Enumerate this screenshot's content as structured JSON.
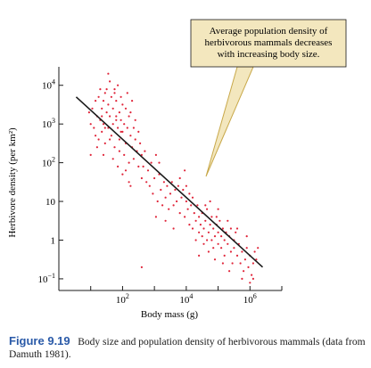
{
  "chart_data": {
    "type": "scatter",
    "title": "",
    "xlabel": "Body mass (g)",
    "ylabel": "Herbivore density (per km²)",
    "x_scale": "log10",
    "y_scale": "log10",
    "xlim": [
      1,
      10000000
    ],
    "ylim": [
      0.05,
      30000
    ],
    "x_ticks": [
      {
        "value": 100,
        "label_base": "10",
        "label_exp": "2"
      },
      {
        "value": 10000,
        "label_base": "10",
        "label_exp": "4"
      },
      {
        "value": 1000000,
        "label_base": "10",
        "label_exp": "6"
      }
    ],
    "y_ticks": [
      {
        "value": 10000,
        "label_base": "10",
        "label_exp": "4"
      },
      {
        "value": 1000,
        "label_base": "10",
        "label_exp": "3"
      },
      {
        "value": 100,
        "label_base": "10",
        "label_exp": "2"
      },
      {
        "value": 10,
        "label_base": "10",
        "label_exp": ""
      },
      {
        "value": 1,
        "label_base": "1",
        "label_exp": ""
      },
      {
        "value": 0.1,
        "label_base": "10",
        "label_exp": "−1"
      }
    ],
    "trend_line": {
      "x": [
        3.5,
        2500000
      ],
      "y": [
        5000,
        0.2
      ]
    },
    "point_color": "#e0253a",
    "axis_color": "#1a1a1a",
    "annotation_text": [
      "Average population density of",
      "herbivorous mammals decreases",
      "with increasing body size."
    ],
    "annotation_box_color": "#f3e7be",
    "annotation_pointer_color": "#c8a84a",
    "points": [
      [
        0.95,
        3.3
      ],
      [
        1.0,
        3.0
      ],
      [
        1.05,
        3.4
      ],
      [
        1.1,
        2.9
      ],
      [
        1.15,
        3.6
      ],
      [
        1.2,
        3.2
      ],
      [
        1.25,
        3.7
      ],
      [
        1.25,
        2.6
      ],
      [
        1.3,
        3.1
      ],
      [
        1.3,
        3.9
      ],
      [
        1.35,
        3.4
      ],
      [
        1.35,
        2.8
      ],
      [
        1.4,
        3.6
      ],
      [
        1.4,
        3.0
      ],
      [
        1.45,
        3.8
      ],
      [
        1.45,
        2.5
      ],
      [
        1.5,
        3.3
      ],
      [
        1.5,
        3.9
      ],
      [
        1.55,
        2.9
      ],
      [
        1.55,
        3.5
      ],
      [
        1.6,
        4.1
      ],
      [
        1.6,
        3.2
      ],
      [
        1.65,
        3.7
      ],
      [
        1.65,
        2.7
      ],
      [
        1.7,
        3.4
      ],
      [
        1.7,
        3.0
      ],
      [
        1.75,
        3.8
      ],
      [
        1.75,
        2.4
      ],
      [
        1.8,
        3.2
      ],
      [
        1.8,
        3.6
      ],
      [
        1.85,
        2.9
      ],
      [
        1.85,
        4.0
      ],
      [
        1.9,
        3.3
      ],
      [
        1.9,
        2.6
      ],
      [
        1.95,
        3.7
      ],
      [
        1.95,
        3.1
      ],
      [
        2.0,
        2.8
      ],
      [
        2.0,
        3.5
      ],
      [
        2.05,
        2.2
      ],
      [
        2.05,
        3.0
      ],
      [
        2.1,
        3.4
      ],
      [
        2.1,
        2.5
      ],
      [
        2.15,
        3.8
      ],
      [
        2.15,
        2.9
      ],
      [
        2.2,
        3.2
      ],
      [
        2.2,
        2.0
      ],
      [
        2.25,
        2.7
      ],
      [
        2.25,
        3.3
      ],
      [
        2.3,
        2.4
      ],
      [
        2.3,
        3.6
      ],
      [
        2.35,
        2.9
      ],
      [
        2.35,
        2.1
      ],
      [
        2.4,
        3.1
      ],
      [
        2.4,
        2.6
      ],
      [
        2.45,
        2.3
      ],
      [
        2.5,
        2.8
      ],
      [
        2.5,
        1.9
      ],
      [
        2.55,
        2.5
      ],
      [
        2.6,
        2.2
      ],
      [
        2.6,
        1.6
      ],
      [
        1.2,
        2.4
      ],
      [
        1.0,
        2.2
      ],
      [
        1.4,
        2.2
      ],
      [
        1.7,
        2.1
      ],
      [
        1.85,
        1.9
      ],
      [
        2.0,
        1.7
      ],
      [
        2.1,
        1.8
      ],
      [
        2.2,
        1.5
      ],
      [
        1.6,
        2.6
      ],
      [
        1.9,
        2.3
      ],
      [
        1.15,
        2.7
      ],
      [
        1.35,
        3.2
      ],
      [
        1.55,
        4.3
      ],
      [
        1.75,
        3.9
      ],
      [
        1.95,
        2.8
      ],
      [
        1.8,
        3.1
      ],
      [
        2.25,
        1.4
      ],
      [
        1.45,
        2.9
      ],
      [
        2.7,
        2.3
      ],
      [
        2.8,
        1.8
      ],
      [
        2.85,
        1.4
      ],
      [
        2.9,
        2.0
      ],
      [
        2.95,
        1.2
      ],
      [
        3.0,
        1.6
      ],
      [
        3.05,
        2.2
      ],
      [
        3.1,
        1.0
      ],
      [
        3.15,
        1.7
      ],
      [
        3.2,
        1.3
      ],
      [
        3.25,
        0.9
      ],
      [
        3.3,
        1.5
      ],
      [
        3.35,
        1.1
      ],
      [
        3.4,
        1.4
      ],
      [
        3.45,
        0.8
      ],
      [
        3.5,
        1.2
      ],
      [
        3.55,
        1.5
      ],
      [
        3.6,
        0.9
      ],
      [
        3.65,
        1.3
      ],
      [
        3.7,
        1.0
      ],
      [
        3.75,
        1.4
      ],
      [
        3.8,
        0.7
      ],
      [
        3.85,
        1.1
      ],
      [
        3.9,
        1.3
      ],
      [
        3.95,
        0.6
      ],
      [
        4.0,
        1.0
      ],
      [
        4.0,
        1.4
      ],
      [
        4.05,
        0.8
      ],
      [
        4.1,
        1.2
      ],
      [
        4.1,
        0.4
      ],
      [
        4.15,
        0.9
      ],
      [
        4.2,
        1.1
      ],
      [
        2.75,
        1.5
      ],
      [
        3.05,
        0.6
      ],
      [
        3.35,
        0.5
      ],
      [
        3.6,
        0.3
      ],
      [
        3.8,
        1.6
      ],
      [
        3.95,
        1.8
      ],
      [
        3.15,
        2.0
      ],
      [
        2.65,
        1.9
      ],
      [
        4.2,
        0.3
      ],
      [
        4.25,
        0.7
      ],
      [
        4.3,
        0.0
      ],
      [
        4.3,
        0.5
      ],
      [
        4.35,
        0.9
      ],
      [
        4.4,
        0.2
      ],
      [
        4.4,
        0.6
      ],
      [
        4.45,
        0.4
      ],
      [
        4.5,
        0.1
      ],
      [
        4.5,
        0.7
      ],
      [
        4.55,
        -0.1
      ],
      [
        4.55,
        0.3
      ],
      [
        4.6,
        0.5
      ],
      [
        4.65,
        0.0
      ],
      [
        4.65,
        0.8
      ],
      [
        4.7,
        0.2
      ],
      [
        4.7,
        -0.3
      ],
      [
        4.75,
        0.4
      ],
      [
        4.8,
        0.0
      ],
      [
        4.8,
        0.6
      ],
      [
        4.85,
        -0.2
      ],
      [
        4.85,
        0.3
      ],
      [
        4.9,
        0.1
      ],
      [
        4.9,
        -0.5
      ],
      [
        4.95,
        0.4
      ],
      [
        5.0,
        -0.1
      ],
      [
        5.0,
        0.2
      ],
      [
        5.05,
        0.5
      ],
      [
        5.1,
        -0.2
      ],
      [
        5.1,
        0.1
      ],
      [
        5.15,
        0.3
      ],
      [
        5.2,
        -0.4
      ],
      [
        5.2,
        0.0
      ],
      [
        5.25,
        0.2
      ],
      [
        5.3,
        -0.1
      ],
      [
        5.35,
        0.1
      ],
      [
        5.4,
        -0.3
      ],
      [
        5.4,
        0.3
      ],
      [
        5.45,
        -0.6
      ],
      [
        5.5,
        0.0
      ],
      [
        5.5,
        -0.2
      ],
      [
        5.55,
        0.2
      ],
      [
        5.6,
        -0.4
      ],
      [
        5.65,
        -0.1
      ],
      [
        5.7,
        -0.6
      ],
      [
        5.75,
        -0.3
      ],
      [
        5.8,
        -0.8
      ],
      [
        5.85,
        -0.5
      ],
      [
        5.9,
        -0.2
      ],
      [
        5.95,
        -0.7
      ],
      [
        6.0,
        -0.4
      ],
      [
        6.05,
        -0.9
      ],
      [
        6.1,
        -0.6
      ],
      [
        6.15,
        -0.3
      ],
      [
        6.2,
        -0.5
      ],
      [
        6.25,
        -0.2
      ],
      [
        6.0,
        -1.1
      ],
      [
        5.75,
        -1.0
      ],
      [
        5.3,
        0.5
      ],
      [
        4.6,
        0.9
      ],
      [
        4.95,
        0.6
      ],
      [
        5.6,
        0.3
      ],
      [
        4.4,
        -0.4
      ],
      [
        5.15,
        -0.6
      ],
      [
        2.6,
        -0.7
      ],
      [
        6.1,
        -1.0
      ],
      [
        5.9,
        0.1
      ],
      [
        5.0,
        0.8
      ],
      [
        4.75,
        1.0
      ],
      [
        5.35,
        -0.8
      ]
    ]
  },
  "caption": {
    "figure_number": "Figure 9.19",
    "text": "Body size and population density of herbivorous mammals (data from Damuth 1981)."
  }
}
